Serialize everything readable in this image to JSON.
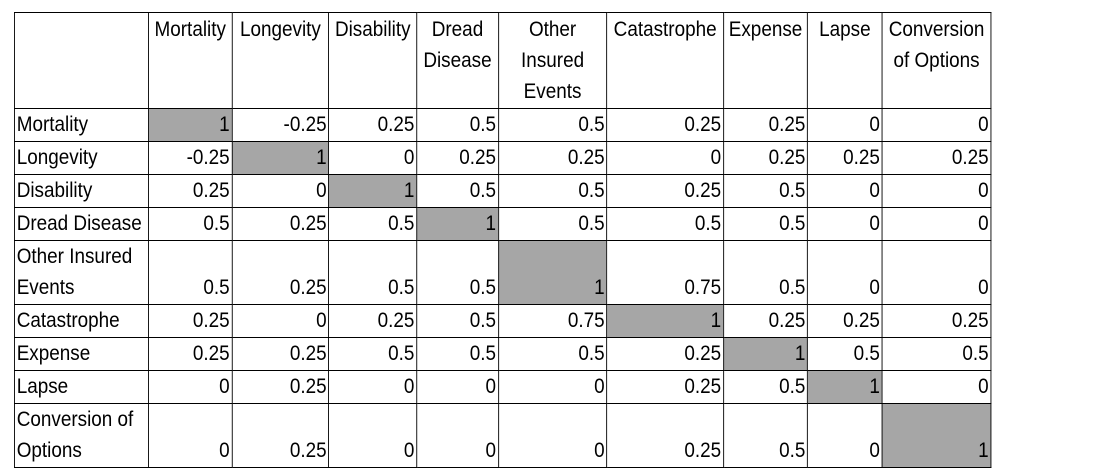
{
  "table": {
    "corner": "",
    "columns": [
      "Mortality",
      "Longevity",
      "Disability",
      "Dread Disease",
      "Other Insured Events",
      "Catastrophe",
      "Expense",
      "Lapse",
      "Conversion of Options"
    ],
    "rows": [
      {
        "label": "Mortality",
        "values": [
          "1",
          "-0.25",
          "0.25",
          "0.5",
          "0.5",
          "0.25",
          "0.25",
          "0",
          "0"
        ]
      },
      {
        "label": "Longevity",
        "values": [
          "-0.25",
          "1",
          "0",
          "0.25",
          "0.25",
          "0",
          "0.25",
          "0.25",
          "0.25"
        ]
      },
      {
        "label": "Disability",
        "values": [
          "0.25",
          "0",
          "1",
          "0.5",
          "0.5",
          "0.25",
          "0.5",
          "0",
          "0"
        ]
      },
      {
        "label": "Dread Disease",
        "values": [
          "0.5",
          "0.25",
          "0.5",
          "1",
          "0.5",
          "0.5",
          "0.5",
          "0",
          "0"
        ]
      },
      {
        "label": "Other Insured Events",
        "values": [
          "0.5",
          "0.25",
          "0.5",
          "0.5",
          "1",
          "0.75",
          "0.5",
          "0",
          "0"
        ]
      },
      {
        "label": "Catastrophe",
        "values": [
          "0.25",
          "0",
          "0.25",
          "0.5",
          "0.75",
          "1",
          "0.25",
          "0.25",
          "0.25"
        ]
      },
      {
        "label": "Expense",
        "values": [
          "0.25",
          "0.25",
          "0.5",
          "0.5",
          "0.5",
          "0.25",
          "1",
          "0.5",
          "0.5"
        ]
      },
      {
        "label": "Lapse",
        "values": [
          "0",
          "0.25",
          "0",
          "0",
          "0",
          "0.25",
          "0.5",
          "1",
          "0"
        ]
      },
      {
        "label": "Conversion of Options",
        "values": [
          "0",
          "0.25",
          "0",
          "0",
          "0",
          "0.25",
          "0.5",
          "0",
          "1"
        ]
      }
    ],
    "diagonal_color": "#a6a6a6"
  }
}
